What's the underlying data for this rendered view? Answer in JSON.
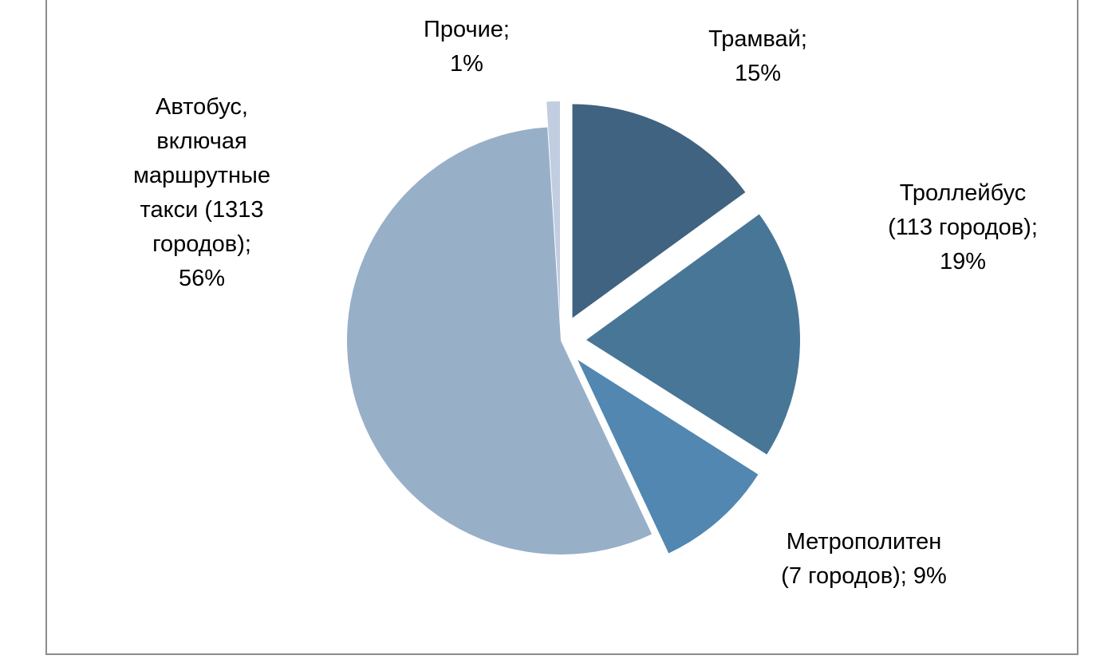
{
  "chart_data": {
    "type": "pie",
    "title": "",
    "slices": [
      {
        "key": "tram",
        "label_lines": [
          "Трамвай;",
          "15%"
        ],
        "value": 15,
        "color": "#3f6380",
        "exploded": true
      },
      {
        "key": "trolleybus",
        "label_lines": [
          "Троллейбус",
          "(113 городов);",
          "19%"
        ],
        "value": 19,
        "color": "#487697",
        "exploded": true
      },
      {
        "key": "metro",
        "label_lines": [
          "Метрополитен",
          "(7 городов); 9%"
        ],
        "value": 9,
        "color": "#5187b0",
        "exploded": true
      },
      {
        "key": "bus",
        "label_lines": [
          "Автобус,",
          "включая",
          "маршрутные",
          "такси (1313",
          "городов);",
          "56%"
        ],
        "value": 56,
        "color": "#98afc8",
        "exploded": false
      },
      {
        "key": "other",
        "label_lines": [
          "Прочие;",
          "1%"
        ],
        "value": 1,
        "color": "#c1cde0",
        "exploded": true
      }
    ],
    "legend": "none",
    "start_angle": "12 o'clock",
    "direction": "clockwise"
  }
}
